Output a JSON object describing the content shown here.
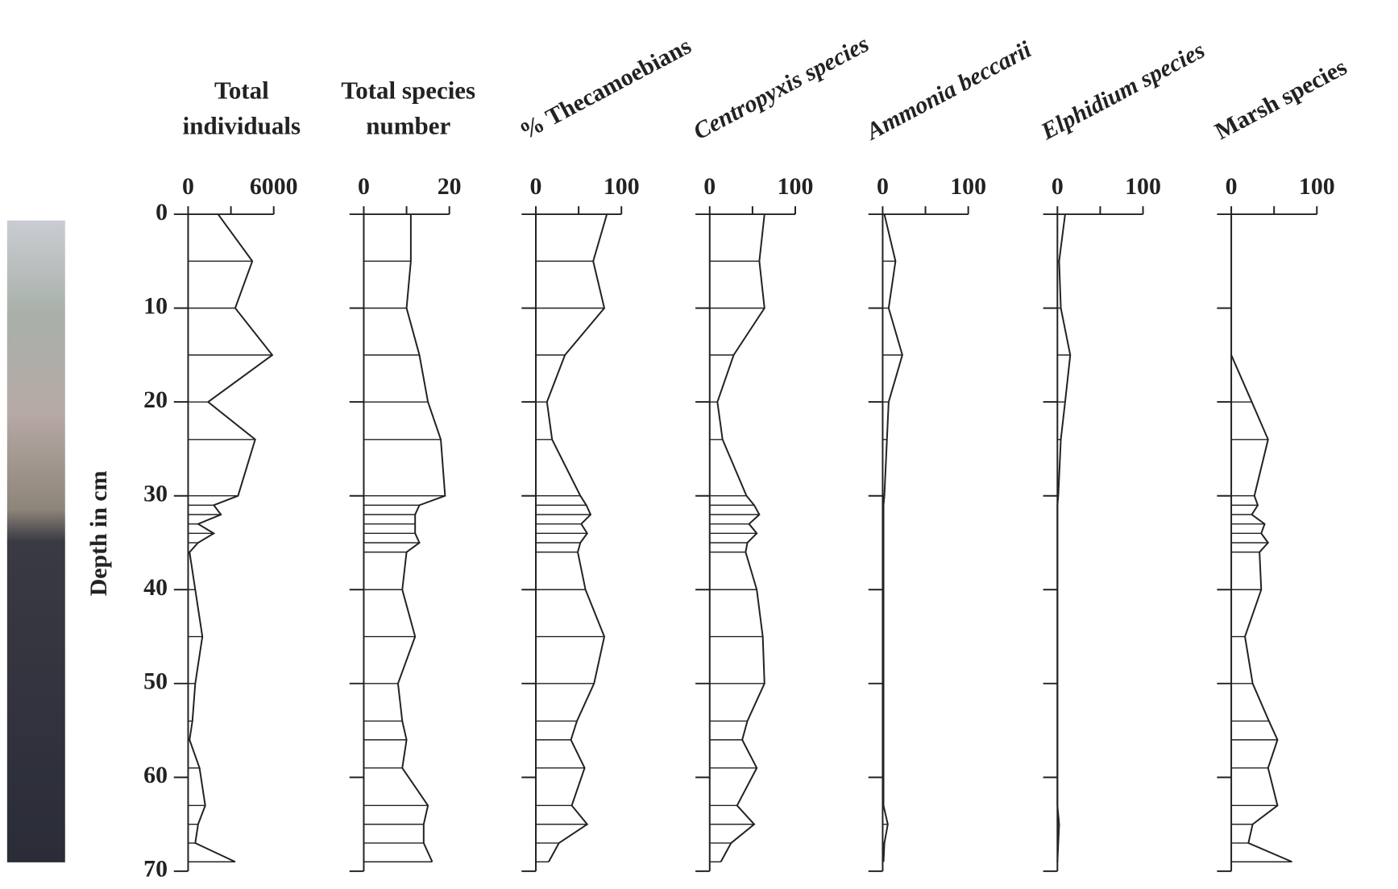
{
  "chart_data": [
    {
      "type": "line",
      "title": "Total individuals",
      "ylabel": "Depth in cm",
      "xlim": [
        0,
        6000
      ],
      "xticks": [
        0,
        6000
      ],
      "xminorticks": [
        3000
      ],
      "ylim": [
        0,
        70
      ],
      "yticks": [
        0,
        10,
        20,
        30,
        40,
        50,
        60,
        70
      ],
      "y": [
        0,
        5,
        10,
        15,
        20,
        24,
        30,
        31,
        32,
        33,
        34,
        35,
        36,
        40,
        45,
        50,
        54,
        56,
        59,
        63,
        65,
        67,
        69
      ],
      "values": [
        2100,
        4500,
        3300,
        5900,
        1400,
        4700,
        3500,
        1800,
        2300,
        700,
        1800,
        700,
        100,
        500,
        1000,
        500,
        300,
        100,
        800,
        1200,
        700,
        500,
        3300
      ],
      "color": "#222"
    },
    {
      "type": "line",
      "title": "Total species number",
      "xlim": [
        0,
        20
      ],
      "xticks": [
        0,
        20
      ],
      "xminorticks": [
        10
      ],
      "ylim": [
        0,
        70
      ],
      "y": [
        0,
        5,
        10,
        15,
        20,
        24,
        30,
        31,
        32,
        33,
        34,
        35,
        36,
        40,
        45,
        50,
        54,
        56,
        59,
        63,
        65,
        67,
        69
      ],
      "values": [
        11,
        11,
        10,
        13,
        15,
        18,
        19,
        13,
        12,
        12,
        12,
        13,
        10,
        9,
        12,
        8,
        9,
        10,
        9,
        15,
        14,
        14,
        16
      ],
      "color": "#222"
    },
    {
      "type": "line",
      "title": "% Thecamoebians",
      "xlim": [
        0,
        100
      ],
      "xticks": [
        0,
        100
      ],
      "xminorticks": [
        50
      ],
      "ylim": [
        0,
        70
      ],
      "y": [
        0,
        5,
        10,
        15,
        20,
        24,
        30,
        31,
        32,
        33,
        34,
        35,
        36,
        40,
        45,
        50,
        54,
        56,
        59,
        63,
        65,
        67,
        69
      ],
      "values": [
        83,
        67,
        80,
        34,
        13,
        19,
        52,
        59,
        64,
        53,
        60,
        52,
        49,
        58,
        80,
        68,
        48,
        41,
        57,
        42,
        60,
        27,
        15
      ],
      "color": "#222"
    },
    {
      "type": "line",
      "title": "Centropyxis species",
      "xlim": [
        0,
        100
      ],
      "xticks": [
        0,
        100
      ],
      "xminorticks": [
        50
      ],
      "ylim": [
        0,
        70
      ],
      "y": [
        0,
        5,
        10,
        15,
        20,
        24,
        30,
        31,
        32,
        33,
        34,
        35,
        36,
        40,
        45,
        50,
        54,
        56,
        59,
        63,
        65,
        67,
        69
      ],
      "values": [
        64,
        58,
        64,
        28,
        9,
        15,
        43,
        52,
        58,
        46,
        55,
        44,
        42,
        55,
        62,
        64,
        44,
        38,
        55,
        32,
        52,
        25,
        13
      ],
      "color": "#222"
    },
    {
      "type": "line",
      "title": "Ammonia beccarii",
      "xlim": [
        0,
        100
      ],
      "xticks": [
        0,
        100
      ],
      "xminorticks": [
        50
      ],
      "ylim": [
        0,
        70
      ],
      "y": [
        0,
        5,
        10,
        15,
        20,
        24,
        30,
        31,
        32,
        33,
        34,
        35,
        36,
        40,
        45,
        50,
        54,
        56,
        59,
        63,
        65,
        67,
        69
      ],
      "values": [
        2,
        15,
        7,
        23,
        7,
        5,
        2,
        1,
        1,
        1,
        1,
        1,
        1,
        1,
        1,
        1,
        1,
        1,
        1,
        1,
        6,
        2,
        1
      ],
      "color": "#222"
    },
    {
      "type": "line",
      "title": "Elphidium species",
      "xlim": [
        0,
        100
      ],
      "xticks": [
        0,
        100
      ],
      "xminorticks": [
        50
      ],
      "ylim": [
        0,
        70
      ],
      "y": [
        0,
        5,
        10,
        15,
        20,
        24,
        30,
        31,
        32,
        33,
        34,
        35,
        36,
        40,
        45,
        50,
        54,
        56,
        59,
        63,
        65,
        67,
        69
      ],
      "values": [
        9,
        2,
        4,
        15,
        9,
        4,
        1,
        0,
        0,
        0,
        0,
        0,
        0,
        0,
        0,
        0,
        0,
        0,
        0,
        0,
        2,
        1,
        0
      ],
      "color": "#222"
    },
    {
      "type": "line",
      "title": "Marsh species",
      "xlim": [
        0,
        100
      ],
      "xticks": [
        0,
        100
      ],
      "xminorticks": [
        50
      ],
      "ylim": [
        0,
        70
      ],
      "y": [
        0,
        5,
        10,
        15,
        20,
        24,
        30,
        31,
        32,
        33,
        34,
        35,
        36,
        40,
        45,
        50,
        54,
        56,
        59,
        63,
        65,
        67,
        69
      ],
      "values": [
        null,
        null,
        null,
        0,
        24,
        43,
        27,
        31,
        24,
        39,
        35,
        43,
        33,
        35,
        16,
        25,
        44,
        54,
        43,
        54,
        25,
        20,
        71
      ],
      "color": "#222"
    }
  ]
}
